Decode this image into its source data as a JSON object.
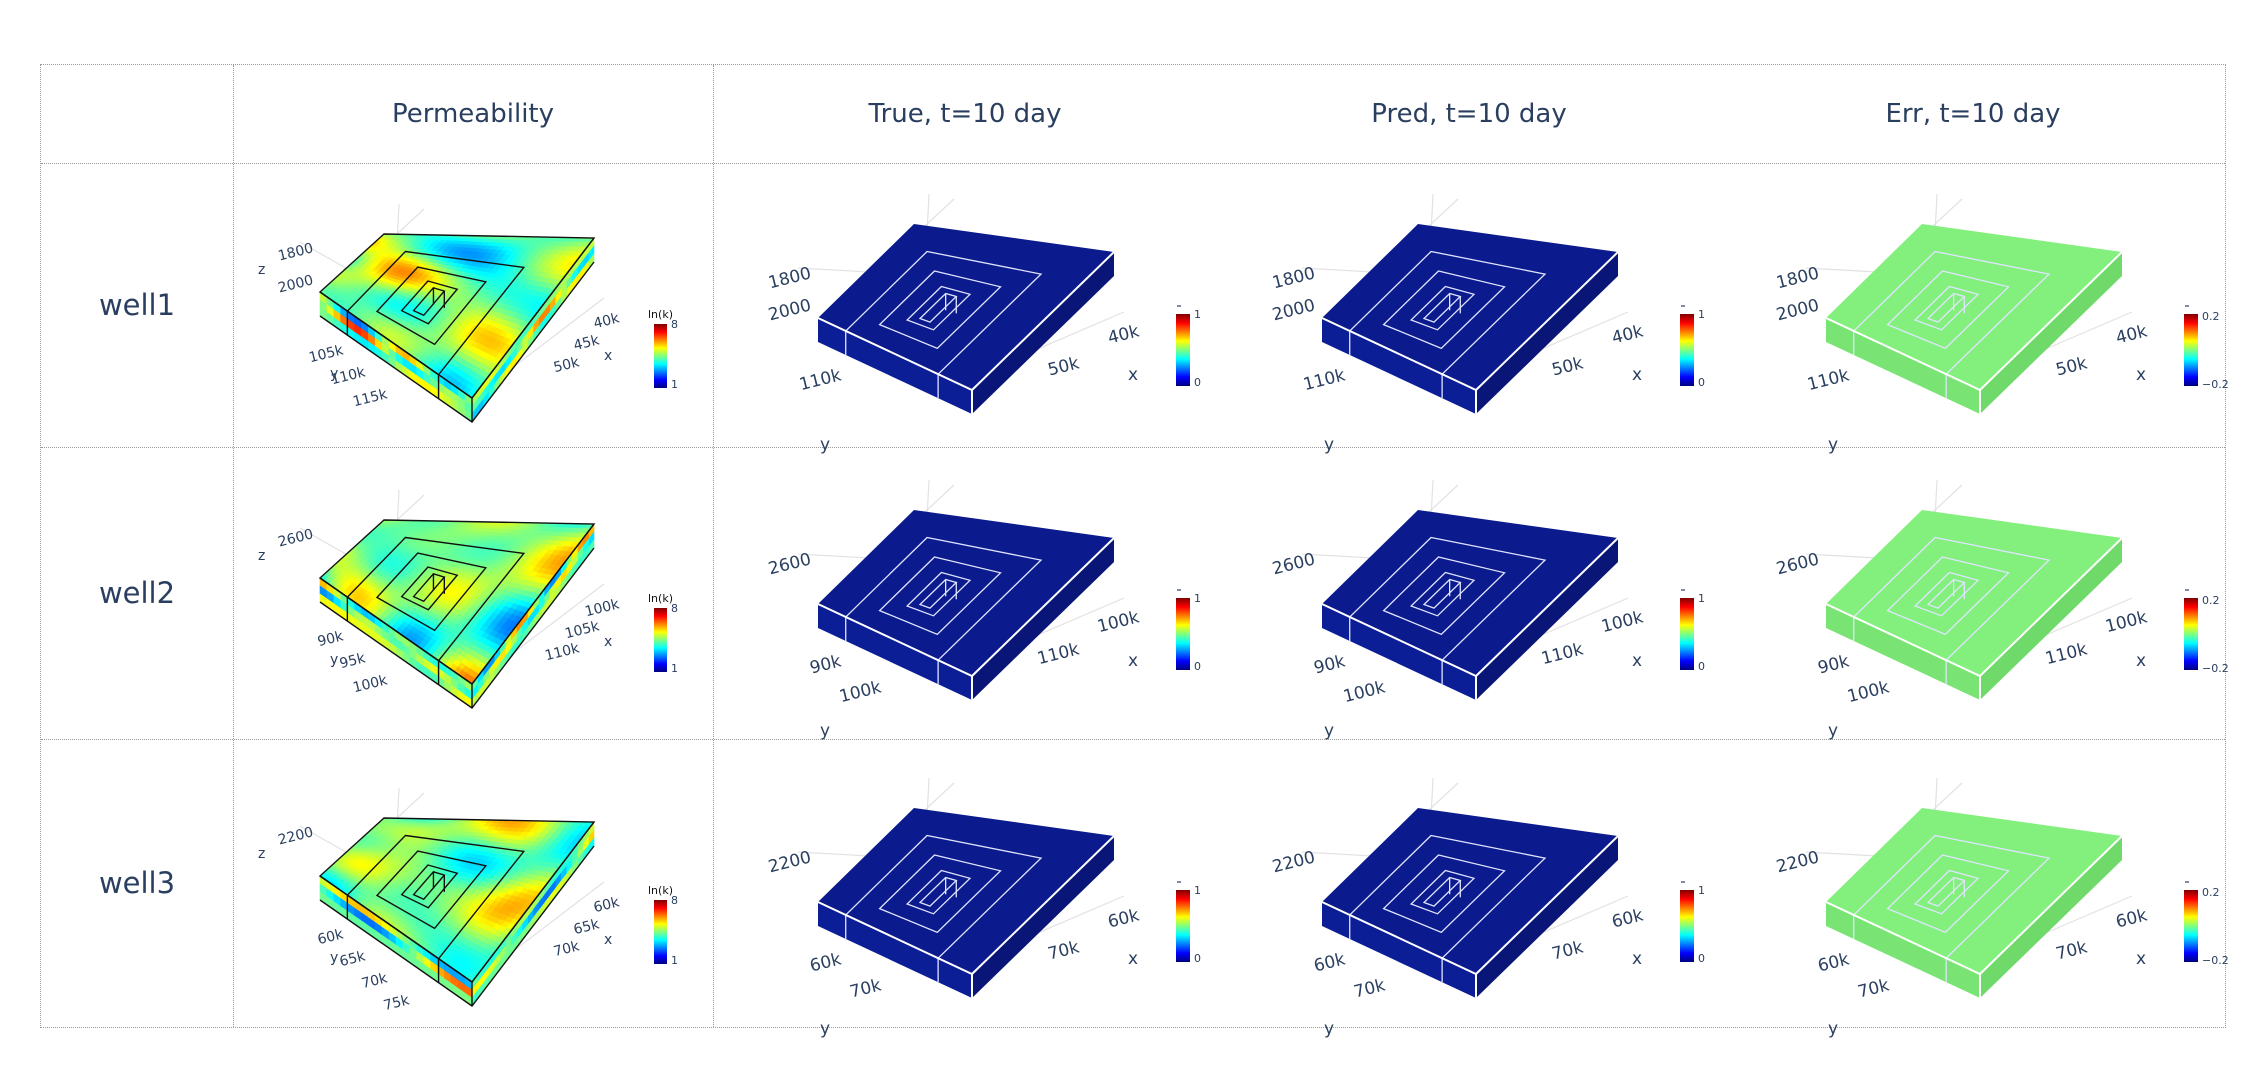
{
  "columns": [
    "",
    "Permeability",
    "True, t=10 day",
    "Pred, t=10 day",
    "Err, t=10 day"
  ],
  "rows": [
    {
      "label": "well1",
      "perm": {
        "z_ticks": [
          "1800",
          "2000"
        ],
        "y_ticks": [
          "105k",
          "110k",
          "115k"
        ],
        "x_ticks": [
          "40k",
          "45k",
          "50k"
        ]
      },
      "field": {
        "z_ticks": [
          "1800",
          "2000"
        ],
        "y_ticks": [
          "110k"
        ],
        "x_ticks": [
          "40k",
          "50k"
        ]
      }
    },
    {
      "label": "well2",
      "perm": {
        "z_ticks": [
          "2600"
        ],
        "y_ticks": [
          "90k",
          "95k",
          "100k"
        ],
        "x_ticks": [
          "100k",
          "105k",
          "110k"
        ]
      },
      "field": {
        "z_ticks": [
          "2600"
        ],
        "y_ticks": [
          "90k",
          "100k"
        ],
        "x_ticks": [
          "100k",
          "110k"
        ]
      }
    },
    {
      "label": "well3",
      "perm": {
        "z_ticks": [
          "2200"
        ],
        "y_ticks": [
          "60k",
          "65k",
          "70k",
          "75k"
        ],
        "x_ticks": [
          "60k",
          "65k",
          "70k"
        ]
      },
      "field": {
        "z_ticks": [
          "2200"
        ],
        "y_ticks": [
          "60k",
          "70k"
        ],
        "x_ticks": [
          "60k",
          "70k"
        ]
      }
    }
  ],
  "axis_names": {
    "x": "x",
    "y": "y",
    "z": "z"
  },
  "colorbars": {
    "perm": {
      "title": "ln(k)",
      "max": "8",
      "min": "1"
    },
    "true": {
      "max": "1",
      "min": "0"
    },
    "pred": {
      "max": "1",
      "min": "0"
    },
    "err": {
      "max": "0.2",
      "min": "−0.2"
    }
  },
  "colors": {
    "text": "#2a3f5f",
    "field_top": "#0b1a8c",
    "field_side": "#0a1677",
    "field_front": "#0c1e96",
    "err_top": "#83f07d",
    "err_side": "#6fd96a",
    "err_front": "#79e473",
    "grid_border": "#9a9a9a"
  }
}
